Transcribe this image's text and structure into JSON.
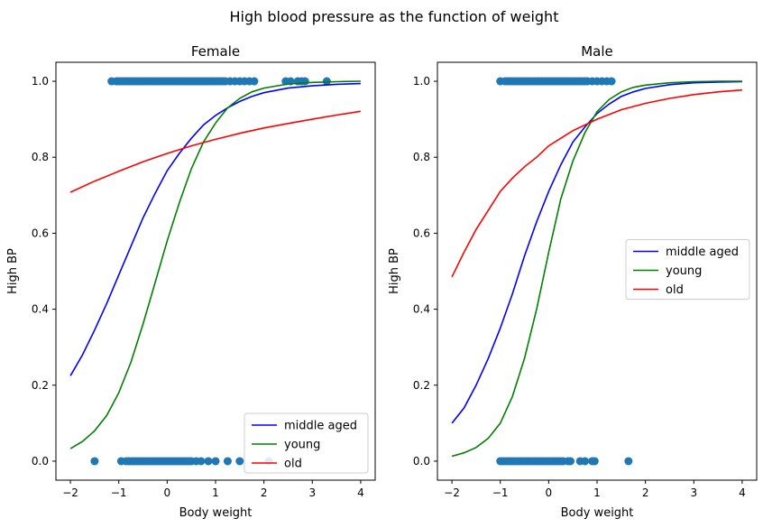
{
  "suptitle": "High blood pressure as the function of weight",
  "chart_data": [
    {
      "type": "line",
      "title": "Female",
      "xlabel": "Body weight",
      "ylabel": "High BP",
      "xlim": [
        -2.3,
        4.3
      ],
      "ylim": [
        -0.05,
        1.05
      ],
      "xticks": [
        -2,
        -1,
        0,
        1,
        2,
        3,
        4
      ],
      "yticks": [
        "0.0",
        "0.2",
        "0.4",
        "0.6",
        "0.8",
        "1.0"
      ],
      "legend_position": "lower right",
      "series": [
        {
          "name": "middle aged",
          "color": "#0000ff",
          "x": [
            -2,
            -1.75,
            -1.5,
            -1.25,
            -1,
            -0.75,
            -0.5,
            -0.25,
            0,
            0.25,
            0.5,
            0.75,
            1,
            1.25,
            1.5,
            1.75,
            2,
            2.5,
            3,
            3.5,
            4
          ],
          "y": [
            0.225,
            0.28,
            0.345,
            0.415,
            0.49,
            0.565,
            0.64,
            0.705,
            0.765,
            0.81,
            0.85,
            0.885,
            0.91,
            0.93,
            0.947,
            0.96,
            0.97,
            0.982,
            0.988,
            0.992,
            0.994
          ]
        },
        {
          "name": "young",
          "color": "#008000",
          "x": [
            -2,
            -1.75,
            -1.5,
            -1.25,
            -1,
            -0.75,
            -0.5,
            -0.25,
            0,
            0.25,
            0.5,
            0.75,
            1,
            1.25,
            1.5,
            1.75,
            2,
            2.5,
            3,
            3.5,
            4
          ],
          "y": [
            0.033,
            0.052,
            0.08,
            0.12,
            0.18,
            0.26,
            0.36,
            0.47,
            0.58,
            0.68,
            0.77,
            0.84,
            0.89,
            0.93,
            0.955,
            0.972,
            0.982,
            0.993,
            0.997,
            0.999,
            1.0
          ]
        },
        {
          "name": "old",
          "color": "#ff0000",
          "x": [
            -2,
            -1.5,
            -1,
            -0.5,
            0,
            0.5,
            1,
            1.5,
            2,
            2.5,
            3,
            3.5,
            4
          ],
          "y": [
            0.708,
            0.737,
            0.763,
            0.788,
            0.81,
            0.83,
            0.847,
            0.863,
            0.877,
            0.889,
            0.9,
            0.911,
            0.921
          ]
        }
      ],
      "scatter": {
        "color": "#1f77b4",
        "points_y1": [
          -1.15,
          -1.05,
          -1.0,
          -0.95,
          -0.9,
          -0.85,
          -0.8,
          -0.75,
          -0.7,
          -0.65,
          -0.6,
          -0.55,
          -0.5,
          -0.45,
          -0.4,
          -0.35,
          -0.3,
          -0.25,
          -0.2,
          -0.15,
          -0.1,
          -0.05,
          0.0,
          0.05,
          0.1,
          0.15,
          0.2,
          0.25,
          0.3,
          0.35,
          0.4,
          0.45,
          0.5,
          0.55,
          0.6,
          0.65,
          0.7,
          0.75,
          0.8,
          0.85,
          0.9,
          0.95,
          1.0,
          1.05,
          1.1,
          1.15,
          1.2,
          1.3,
          1.4,
          1.5,
          1.6,
          1.7,
          1.8,
          2.45,
          2.55,
          2.7,
          2.78,
          2.85,
          3.3
        ],
        "points_y0": [
          -1.5,
          -0.95,
          -0.85,
          -0.8,
          -0.75,
          -0.7,
          -0.65,
          -0.6,
          -0.55,
          -0.5,
          -0.45,
          -0.4,
          -0.35,
          -0.3,
          -0.25,
          -0.2,
          -0.15,
          -0.1,
          -0.05,
          0.0,
          0.05,
          0.1,
          0.15,
          0.2,
          0.25,
          0.3,
          0.35,
          0.4,
          0.45,
          0.5,
          0.6,
          0.7,
          0.85,
          1.0,
          1.25,
          1.5,
          2.1
        ]
      }
    },
    {
      "type": "line",
      "title": "Male",
      "xlabel": "Body weight",
      "ylabel": "High BP",
      "xlim": [
        -2.3,
        4.3
      ],
      "ylim": [
        -0.05,
        1.05
      ],
      "xticks": [
        -2,
        -1,
        0,
        1,
        2,
        3,
        4
      ],
      "yticks": [
        "0.0",
        "0.2",
        "0.4",
        "0.6",
        "0.8",
        "1.0"
      ],
      "legend_position": "center right",
      "series": [
        {
          "name": "middle aged",
          "color": "#0000ff",
          "x": [
            -2,
            -1.75,
            -1.5,
            -1.25,
            -1,
            -0.75,
            -0.5,
            -0.25,
            0,
            0.25,
            0.5,
            0.75,
            1,
            1.25,
            1.5,
            1.75,
            2,
            2.5,
            3,
            3.5,
            4
          ],
          "y": [
            0.1,
            0.14,
            0.2,
            0.27,
            0.35,
            0.44,
            0.54,
            0.63,
            0.71,
            0.78,
            0.84,
            0.88,
            0.915,
            0.94,
            0.96,
            0.972,
            0.981,
            0.991,
            0.996,
            0.998,
            0.999
          ]
        },
        {
          "name": "young",
          "color": "#008000",
          "x": [
            -2,
            -1.75,
            -1.5,
            -1.25,
            -1,
            -0.75,
            -0.5,
            -0.25,
            0,
            0.25,
            0.5,
            0.75,
            1,
            1.25,
            1.5,
            1.75,
            2,
            2.5,
            3,
            3.5,
            4
          ],
          "y": [
            0.013,
            0.022,
            0.036,
            0.06,
            0.1,
            0.17,
            0.27,
            0.4,
            0.55,
            0.69,
            0.79,
            0.865,
            0.92,
            0.952,
            0.972,
            0.984,
            0.99,
            0.996,
            0.999,
            1.0,
            1.0
          ]
        },
        {
          "name": "old",
          "color": "#ff0000",
          "x": [
            -2,
            -1.75,
            -1.5,
            -1.25,
            -1,
            -0.75,
            -0.5,
            -0.25,
            0,
            0.25,
            0.5,
            0.75,
            1,
            1.5,
            2,
            2.5,
            3,
            3.5,
            4
          ],
          "y": [
            0.485,
            0.55,
            0.61,
            0.66,
            0.71,
            0.745,
            0.775,
            0.8,
            0.83,
            0.85,
            0.87,
            0.885,
            0.9,
            0.925,
            0.942,
            0.955,
            0.965,
            0.972,
            0.977
          ]
        }
      ],
      "scatter": {
        "color": "#1f77b4",
        "points_y1": [
          -1.0,
          -0.9,
          -0.85,
          -0.8,
          -0.75,
          -0.7,
          -0.65,
          -0.6,
          -0.55,
          -0.5,
          -0.45,
          -0.4,
          -0.35,
          -0.3,
          -0.25,
          -0.2,
          -0.15,
          -0.1,
          -0.05,
          0.0,
          0.05,
          0.1,
          0.15,
          0.2,
          0.25,
          0.3,
          0.35,
          0.4,
          0.45,
          0.5,
          0.55,
          0.6,
          0.65,
          0.7,
          0.75,
          0.8,
          0.9,
          1.0,
          1.1,
          1.2,
          1.3
        ],
        "points_y0": [
          -1.0,
          -0.95,
          -0.9,
          -0.85,
          -0.8,
          -0.75,
          -0.7,
          -0.65,
          -0.6,
          -0.55,
          -0.5,
          -0.45,
          -0.4,
          -0.35,
          -0.3,
          -0.25,
          -0.2,
          -0.15,
          -0.1,
          -0.05,
          0.0,
          0.05,
          0.1,
          0.15,
          0.2,
          0.25,
          0.3,
          0.4,
          0.45,
          0.65,
          0.75,
          0.9,
          0.95,
          1.65
        ]
      }
    }
  ]
}
